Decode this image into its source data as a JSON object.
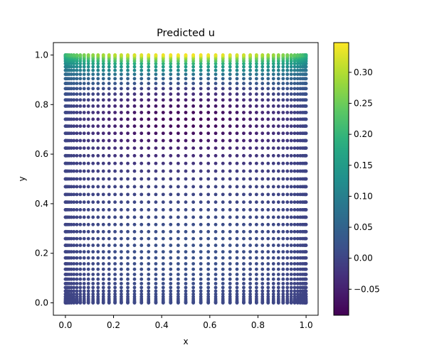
{
  "chart_data": {
    "type": "scatter",
    "title": "Predicted u",
    "xlabel": "x",
    "ylabel": "y",
    "xlim": [
      -0.05,
      1.05
    ],
    "ylim": [
      -0.05,
      1.05
    ],
    "x_ticks": [
      0.0,
      0.2,
      0.4,
      0.6,
      0.8,
      1.0
    ],
    "y_ticks": [
      0.0,
      0.2,
      0.4,
      0.6,
      0.8,
      1.0
    ],
    "x_tick_labels": [
      "0.0",
      "0.2",
      "0.4",
      "0.6",
      "0.8",
      "1.0"
    ],
    "y_tick_labels": [
      "0.0",
      "0.2",
      "0.4",
      "0.6",
      "0.8",
      "1.0"
    ],
    "grid": false,
    "grid_points": {
      "x_min": 0.0,
      "x_max": 1.0,
      "y_min": 0.0,
      "y_max": 1.0,
      "nx": 51,
      "ny": 51,
      "sampling": "cosine-clustered near edges"
    },
    "colorbar": {
      "colormap": "viridis",
      "vmin": -0.092,
      "vmax": 0.348,
      "ticks": [
        -0.05,
        0.0,
        0.05,
        0.1,
        0.15,
        0.2,
        0.25,
        0.3
      ],
      "tick_labels": [
        "−0.05",
        "0.00",
        "0.05",
        "0.10",
        "0.15",
        "0.20",
        "0.25",
        "0.30"
      ]
    },
    "field_description": "u is maximal (~0.35) at the top lid around x=0.5, near 0 along left, right and bottom walls, and minimal (~-0.09) in an interior band near y~0.75"
  }
}
